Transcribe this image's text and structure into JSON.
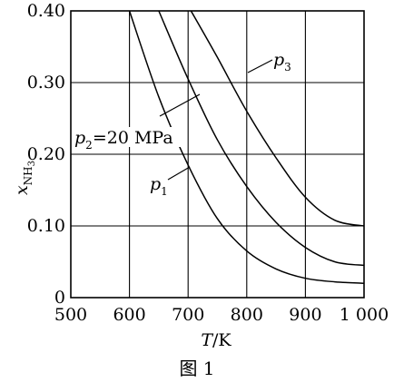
{
  "chart_data": {
    "type": "line",
    "xlabel_var": "T",
    "xlabel_unit": "/K",
    "ylabel_var": "x",
    "ylabel_sub_main": "NH",
    "ylabel_sub_num": "3",
    "x_ticks": [
      "500",
      "600",
      "700",
      "800",
      "900",
      "1 000"
    ],
    "y_ticks": [
      "0",
      "0.10",
      "0.20",
      "0.30",
      "0.40"
    ],
    "xlim": [
      500,
      1000
    ],
    "ylim": [
      0,
      0.4
    ],
    "grid": true,
    "series": [
      {
        "name_var": "p",
        "name_sub": "1",
        "x": [
          600,
          650,
          700,
          750,
          800,
          850,
          900,
          950,
          1000
        ],
        "y": [
          0.4,
          0.28,
          0.185,
          0.11,
          0.065,
          0.04,
          0.027,
          0.022,
          0.02
        ]
      },
      {
        "name_var": "p",
        "name_sub": "2",
        "name_rest": "=20 MPa",
        "x": [
          650,
          700,
          750,
          800,
          850,
          900,
          950,
          1000
        ],
        "y": [
          0.4,
          0.305,
          0.22,
          0.155,
          0.105,
          0.07,
          0.05,
          0.045
        ]
      },
      {
        "name_var": "p",
        "name_sub": "3",
        "x": [
          705,
          750,
          800,
          850,
          900,
          950,
          1000
        ],
        "y": [
          0.4,
          0.335,
          0.26,
          0.195,
          0.14,
          0.108,
          0.1
        ]
      }
    ]
  },
  "caption": "图 1"
}
